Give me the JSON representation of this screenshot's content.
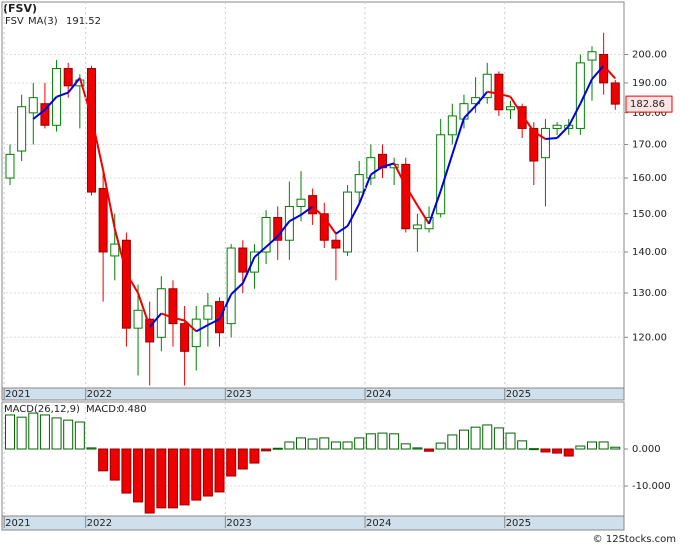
{
  "chart_data": [
    {
      "type": "candlestick",
      "title": "(FSV)",
      "name": "FSV",
      "categories": [
        null,
        null,
        null,
        null,
        null,
        null,
        null,
        null,
        null,
        null,
        null,
        null,
        null,
        null,
        null,
        null,
        null,
        null,
        null,
        null,
        null,
        null,
        null,
        null,
        null,
        null,
        null,
        null,
        null,
        null,
        null,
        null,
        null,
        null,
        null,
        null,
        null,
        null,
        null,
        null,
        null,
        null,
        null,
        null,
        null,
        null,
        null,
        null,
        null,
        null,
        null,
        null,
        null
      ],
      "open": [
        160,
        168,
        180,
        183,
        176,
        195,
        189,
        195,
        157,
        139,
        143,
        122,
        124,
        120,
        131,
        123,
        118,
        124,
        128,
        123,
        141,
        135,
        140,
        149,
        143,
        152,
        155,
        150,
        143,
        140,
        156,
        160,
        167,
        163,
        164,
        146,
        146,
        150,
        173,
        178,
        183,
        185,
        193,
        181,
        182,
        175,
        166,
        175,
        175,
        175,
        198,
        200,
        190
      ],
      "high": [
        170,
        186,
        190,
        190,
        198,
        197,
        193,
        196,
        162,
        150,
        145,
        132,
        128,
        134,
        133,
        127,
        127,
        130,
        129,
        142,
        143,
        142,
        151,
        152,
        159,
        162,
        157,
        153,
        145,
        158,
        165,
        170,
        170,
        166,
        166,
        150,
        152,
        178,
        183,
        186,
        192,
        197,
        194,
        184,
        183,
        177,
        178,
        177,
        178,
        200,
        203,
        208,
        191
      ],
      "low": [
        158,
        165,
        170,
        175,
        174,
        185,
        175,
        155,
        128,
        133,
        118,
        112,
        110,
        117,
        118,
        110,
        113,
        118,
        118,
        120,
        130,
        131,
        137,
        138,
        138,
        148,
        147,
        141,
        133,
        139,
        153,
        158,
        160,
        158,
        145,
        140,
        145,
        149,
        170,
        175,
        180,
        183,
        179,
        178,
        172,
        158,
        152,
        173,
        173,
        173,
        184,
        186,
        181
      ],
      "close": [
        167,
        182,
        185,
        176,
        195,
        189,
        191,
        156,
        140,
        142,
        122,
        126,
        119,
        131,
        123,
        117,
        124,
        127,
        121,
        141,
        135,
        140,
        149,
        143,
        152,
        154,
        150,
        143,
        141,
        156,
        161,
        166,
        163,
        164,
        146,
        147,
        149,
        173,
        179,
        183,
        185,
        193,
        181,
        182,
        175,
        165,
        175,
        176,
        176,
        197,
        201,
        190,
        182.86
      ],
      "ma": {
        "name": "MA(3)",
        "rising_color": "#0000dd",
        "falling_color": "#ee0000",
        "values": [
          null,
          null,
          178,
          181,
          185.3,
          186.7,
          191.7,
          178.7,
          162.3,
          146,
          134.7,
          130,
          122.3,
          125.3,
          124.3,
          123.7,
          121.3,
          122.7,
          124,
          129.7,
          132.3,
          138.7,
          141.3,
          144,
          148,
          149.7,
          152,
          149,
          144.7,
          146.7,
          152.7,
          161,
          163.3,
          164.3,
          157.7,
          152.3,
          147.3,
          156.3,
          167,
          178.3,
          182.3,
          187,
          186.3,
          185.3,
          179.3,
          174,
          171.7,
          172,
          175.7,
          183,
          191.3,
          196,
          191.52
        ]
      },
      "up_color": "#008000",
      "down_color": "#ee0000",
      "name_color": "#008000",
      "ylim": [
        109.5,
        219.9
      ],
      "log_scale": true,
      "grid": true,
      "yticks": [
        {
          "value": 120,
          "label": "120.00"
        },
        {
          "value": 130,
          "label": "130.00"
        },
        {
          "value": 140,
          "label": "140.00"
        },
        {
          "value": 150,
          "label": "150.00"
        },
        {
          "value": 160,
          "label": "160.00"
        },
        {
          "value": 170,
          "label": "170.00"
        },
        {
          "value": 180,
          "label": "180.00"
        },
        {
          "value": 190,
          "label": "190.00"
        },
        {
          "value": 200,
          "label": "200.00"
        }
      ],
      "xticks": [
        {
          "value": -0.5,
          "label": "2021"
        },
        {
          "value": 6.5,
          "label": "2022"
        },
        {
          "value": 18.5,
          "label": "2023"
        },
        {
          "value": 30.5,
          "label": "2024"
        },
        {
          "value": 42.5,
          "label": "2025"
        }
      ]
    },
    {
      "type": "bar",
      "title": "MACD(26,12,9)",
      "legend": "MACD:",
      "last_value_label": "0.480",
      "values": [
        9.2,
        8.6,
        9.7,
        9.2,
        8.4,
        7.8,
        7.3,
        0.3,
        -5.9,
        -8.4,
        -11.9,
        -14.3,
        -17.3,
        -15.9,
        -15.9,
        -15.1,
        -13.8,
        -12.7,
        -11.6,
        -7.3,
        -5.4,
        -3.8,
        -0.5,
        0.2,
        1.9,
        3.0,
        2.7,
        3.0,
        1.9,
        1.9,
        3.0,
        4.1,
        4.3,
        4.1,
        1.4,
        0.3,
        -0.6,
        1.6,
        3.8,
        5.1,
        5.9,
        6.5,
        5.7,
        4.3,
        2.2,
        0.1,
        -0.8,
        -1.1,
        -1.9,
        0.8,
        1.9,
        1.9,
        0.48
      ],
      "up_color": "#006400",
      "down_color": "#ee0000",
      "legend_color": "#0000cc",
      "ylim": [
        -18.1,
        12.7
      ],
      "yticks": [
        {
          "value": 0,
          "label": "0.000"
        },
        {
          "value": -10,
          "label": "-10.000"
        }
      ],
      "xticks": [
        {
          "value": -0.5,
          "label": "2021"
        },
        {
          "value": 6.5,
          "label": "2022"
        },
        {
          "value": 18.5,
          "label": "2023"
        },
        {
          "value": 30.5,
          "label": "2024"
        },
        {
          "value": 42.5,
          "label": "2025"
        }
      ]
    }
  ],
  "footer": "© 12Stocks.com"
}
